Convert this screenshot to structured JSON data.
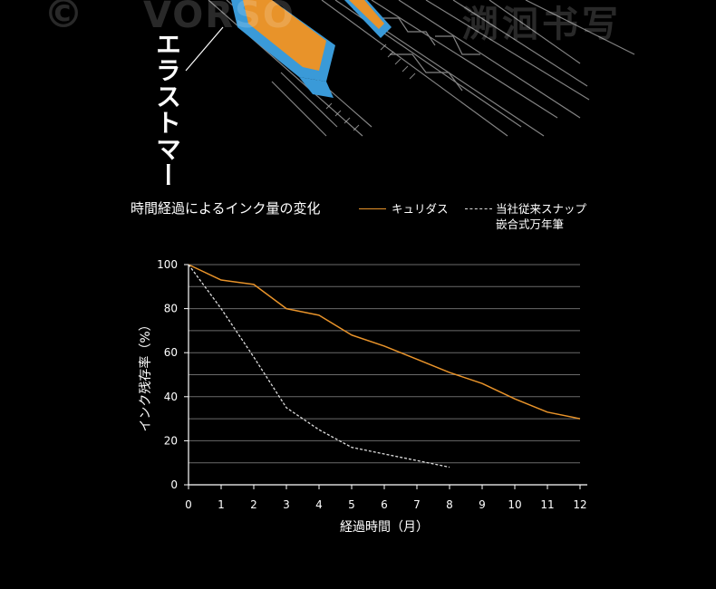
{
  "watermark": {
    "copyright": "©",
    "latin": "VORSO",
    "cjk": "溯洄书写"
  },
  "illustration_label": "エラストマー",
  "chart_data": {
    "type": "line",
    "title": "時間経過によるインク量の変化",
    "xlabel": "経過時間（月）",
    "ylabel": "インク残存率（%）",
    "xlim": [
      0,
      12
    ],
    "ylim": [
      0,
      100
    ],
    "x_ticks": [
      0,
      1,
      2,
      3,
      4,
      5,
      6,
      7,
      8,
      9,
      10,
      11,
      12
    ],
    "y_ticks": [
      0,
      20,
      40,
      60,
      80,
      100
    ],
    "grid": true,
    "legend_position": "top-right",
    "series": [
      {
        "name": "キュリダス",
        "color": "#e8932a",
        "style": "solid",
        "x": [
          0,
          1,
          2,
          3,
          4,
          5,
          6,
          7,
          8,
          9,
          10,
          11,
          12
        ],
        "y": [
          100,
          93,
          91,
          80,
          77,
          68,
          63,
          57,
          51,
          46,
          39,
          33,
          30
        ]
      },
      {
        "name": "当社従来スナップ嵌合式万年筆",
        "name_lines": [
          "当社従来スナップ",
          "嵌合式万年筆"
        ],
        "color": "#dddddd",
        "style": "dashed",
        "x": [
          0,
          1,
          2,
          3,
          4,
          5,
          6,
          7,
          8
        ],
        "y": [
          100,
          80,
          58,
          35,
          25,
          17,
          14,
          11,
          8
        ]
      }
    ]
  }
}
